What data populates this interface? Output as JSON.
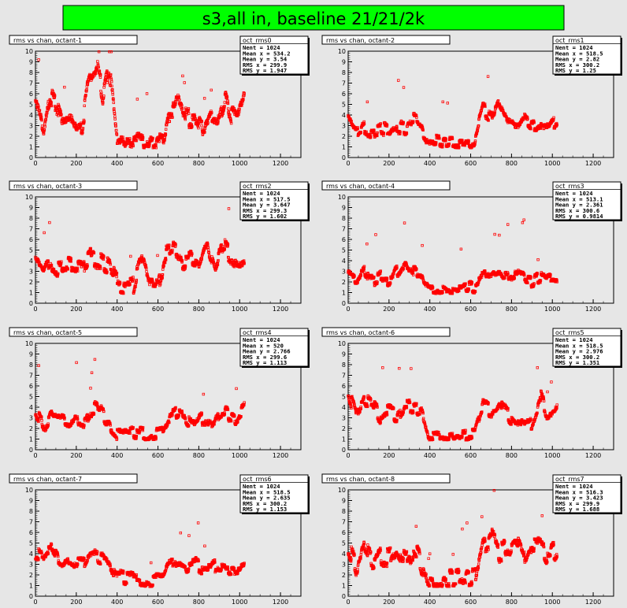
{
  "canvas_title": "s3,all in, baseline 21/21/2k",
  "colors": {
    "title_bg": "#00ff00",
    "marker": "#ff0000",
    "pad_bg": "#e6e6e6",
    "frame_bg": "#e8e8e8"
  },
  "chart_data": [
    {
      "type": "scatter",
      "title": "rms vs chan, octant-1",
      "stats_name": "oct_rms0",
      "stats": [
        {
          "label": "Nent = 1024"
        },
        {
          "label": "Mean x =  534.2"
        },
        {
          "label": "Mean y =  3.54"
        },
        {
          "label": "RMS x =  299.9"
        },
        {
          "label": "RMS y = 1.947"
        }
      ],
      "xlim": [
        0,
        1300
      ],
      "ylim": [
        0,
        10
      ],
      "xticks": [
        "0",
        "200",
        "400",
        "600",
        "800",
        "1000",
        "1200"
      ],
      "yticks": [
        "0",
        "1",
        "2",
        "3",
        "4",
        "5",
        "6",
        "7",
        "8",
        "9",
        "10"
      ],
      "profile": [
        [
          0,
          5.0
        ],
        [
          40,
          2.5
        ],
        [
          70,
          6.0
        ],
        [
          100,
          5.0
        ],
        [
          130,
          3.5
        ],
        [
          170,
          4.0
        ],
        [
          200,
          2.5
        ],
        [
          230,
          3.0
        ],
        [
          260,
          7.0
        ],
        [
          300,
          8.5
        ],
        [
          330,
          6.0
        ],
        [
          360,
          8.5
        ],
        [
          380,
          5.0
        ],
        [
          400,
          1.5
        ],
        [
          480,
          1.4
        ],
        [
          560,
          1.3
        ],
        [
          630,
          1.5
        ],
        [
          660,
          4.5
        ],
        [
          700,
          5.0
        ],
        [
          740,
          3.5
        ],
        [
          780,
          3.8
        ],
        [
          820,
          2.5
        ],
        [
          860,
          4.0
        ],
        [
          900,
          3.5
        ],
        [
          930,
          6.0
        ],
        [
          960,
          4.0
        ],
        [
          990,
          3.5
        ],
        [
          1024,
          6.0
        ]
      ],
      "spread": 0.8,
      "jitter": 0.5
    },
    {
      "type": "scatter",
      "title": "rms vs chan, octant-2",
      "stats_name": "oct_rms1",
      "stats": [
        {
          "label": "Nent = 1024"
        },
        {
          "label": "Mean x =  518.5"
        },
        {
          "label": "Mean y =  2.82"
        },
        {
          "label": "RMS x =  300.2"
        },
        {
          "label": "RMS y =  1.25"
        }
      ],
      "xlim": [
        0,
        1300
      ],
      "ylim": [
        0,
        10
      ],
      "xticks": [
        "0",
        "200",
        "400",
        "600",
        "800",
        "1000",
        "1200"
      ],
      "yticks": [
        "0",
        "1",
        "2",
        "3",
        "4",
        "5",
        "6",
        "7",
        "8",
        "9",
        "10"
      ],
      "profile": [
        [
          0,
          3.5
        ],
        [
          40,
          2.0
        ],
        [
          80,
          2.8
        ],
        [
          120,
          2.5
        ],
        [
          160,
          3.0
        ],
        [
          200,
          2.3
        ],
        [
          240,
          3.0
        ],
        [
          280,
          2.8
        ],
        [
          320,
          3.5
        ],
        [
          360,
          2.8
        ],
        [
          400,
          1.5
        ],
        [
          480,
          1.3
        ],
        [
          560,
          1.4
        ],
        [
          620,
          1.6
        ],
        [
          660,
          4.5
        ],
        [
          700,
          4.0
        ],
        [
          740,
          5.5
        ],
        [
          780,
          3.5
        ],
        [
          820,
          3.0
        ],
        [
          860,
          4.0
        ],
        [
          900,
          3.0
        ],
        [
          940,
          3.5
        ],
        [
          980,
          2.5
        ],
        [
          1024,
          3.5
        ]
      ],
      "spread": 0.6,
      "jitter": 0.3
    },
    {
      "type": "scatter",
      "title": "rms vs chan, octant-3",
      "stats_name": "oct_rms2",
      "stats": [
        {
          "label": "Nent = 1024"
        },
        {
          "label": "Mean x =  517.5"
        },
        {
          "label": "Mean y =  3.647"
        },
        {
          "label": "RMS x =  299.3"
        },
        {
          "label": "RMS y =  1.602"
        }
      ],
      "xlim": [
        0,
        1300
      ],
      "ylim": [
        0,
        10
      ],
      "xticks": [
        "0",
        "200",
        "400",
        "600",
        "800",
        "1000",
        "1200"
      ],
      "yticks": [
        "0",
        "1",
        "2",
        "3",
        "4",
        "5",
        "6",
        "7",
        "8",
        "9",
        "10"
      ],
      "profile": [
        [
          0,
          3.5
        ],
        [
          40,
          2.8
        ],
        [
          80,
          4.0
        ],
        [
          120,
          3.2
        ],
        [
          160,
          3.5
        ],
        [
          200,
          3.0
        ],
        [
          240,
          3.5
        ],
        [
          280,
          4.5
        ],
        [
          320,
          4.0
        ],
        [
          360,
          3.5
        ],
        [
          400,
          2.0
        ],
        [
          440,
          1.5
        ],
        [
          480,
          1.8
        ],
        [
          520,
          4.5
        ],
        [
          560,
          2.0
        ],
        [
          600,
          2.0
        ],
        [
          640,
          4.5
        ],
        [
          680,
          5.0
        ],
        [
          720,
          4.0
        ],
        [
          760,
          4.5
        ],
        [
          800,
          4.0
        ],
        [
          840,
          6.0
        ],
        [
          880,
          3.5
        ],
        [
          920,
          5.5
        ],
        [
          960,
          4.5
        ],
        [
          1000,
          3.5
        ],
        [
          1024,
          4.0
        ]
      ],
      "spread": 0.8,
      "jitter": 0.4
    },
    {
      "type": "scatter",
      "title": "rms vs chan, octant-4",
      "stats_name": "oct_rms3",
      "stats": [
        {
          "label": "Nent = 1024"
        },
        {
          "label": "Mean x =  513.1"
        },
        {
          "label": "Mean y =  2.361"
        },
        {
          "label": "RMS x =  300.6"
        },
        {
          "label": "RMS y =  0.9814"
        }
      ],
      "xlim": [
        0,
        1300
      ],
      "ylim": [
        0,
        10
      ],
      "xticks": [
        "0",
        "200",
        "400",
        "600",
        "800",
        "1000",
        "1200"
      ],
      "yticks": [
        "0",
        "1",
        "2",
        "3",
        "4",
        "5",
        "6",
        "7",
        "8",
        "9",
        "10"
      ],
      "profile": [
        [
          0,
          2.5
        ],
        [
          40,
          2.0
        ],
        [
          80,
          3.0
        ],
        [
          120,
          2.0
        ],
        [
          160,
          2.5
        ],
        [
          200,
          2.2
        ],
        [
          240,
          3.0
        ],
        [
          280,
          4.0
        ],
        [
          320,
          3.0
        ],
        [
          360,
          2.5
        ],
        [
          400,
          1.5
        ],
        [
          480,
          1.3
        ],
        [
          560,
          1.4
        ],
        [
          620,
          1.6
        ],
        [
          660,
          2.5
        ],
        [
          700,
          2.8
        ],
        [
          740,
          3.0
        ],
        [
          780,
          2.5
        ],
        [
          820,
          2.8
        ],
        [
          860,
          2.5
        ],
        [
          900,
          2.0
        ],
        [
          940,
          2.5
        ],
        [
          980,
          2.2
        ],
        [
          1024,
          2.0
        ]
      ],
      "spread": 0.5,
      "jitter": 0.3
    },
    {
      "type": "scatter",
      "title": "rms vs chan, octant-5",
      "stats_name": "oct_rms4",
      "stats": [
        {
          "label": "Nent = 1024"
        },
        {
          "label": "Mean x =    520"
        },
        {
          "label": "Mean y =  2.766"
        },
        {
          "label": "RMS x =  299.6"
        },
        {
          "label": "RMS y =  1.113"
        }
      ],
      "xlim": [
        0,
        1300
      ],
      "ylim": [
        0,
        10
      ],
      "xticks": [
        "0",
        "200",
        "400",
        "600",
        "800",
        "1000",
        "1200"
      ],
      "yticks": [
        "0",
        "1",
        "2",
        "3",
        "4",
        "5",
        "6",
        "7",
        "8",
        "9",
        "10"
      ],
      "profile": [
        [
          0,
          3.8
        ],
        [
          40,
          2.0
        ],
        [
          80,
          3.5
        ],
        [
          120,
          3.0
        ],
        [
          160,
          2.5
        ],
        [
          200,
          3.0
        ],
        [
          240,
          2.5
        ],
        [
          280,
          4.0
        ],
        [
          320,
          3.5
        ],
        [
          360,
          2.5
        ],
        [
          400,
          1.5
        ],
        [
          480,
          1.5
        ],
        [
          560,
          1.3
        ],
        [
          620,
          1.6
        ],
        [
          660,
          3.0
        ],
        [
          700,
          3.5
        ],
        [
          740,
          3.0
        ],
        [
          780,
          2.0
        ],
        [
          820,
          3.0
        ],
        [
          860,
          2.5
        ],
        [
          900,
          3.5
        ],
        [
          940,
          3.5
        ],
        [
          980,
          3.0
        ],
        [
          1024,
          4.0
        ]
      ],
      "spread": 0.6,
      "jitter": 0.3
    },
    {
      "type": "scatter",
      "title": "rms vs chan, octant-6",
      "stats_name": "oct_rms5",
      "stats": [
        {
          "label": "Nent = 1024"
        },
        {
          "label": "Mean x =  518.5"
        },
        {
          "label": "Mean y =  2.976"
        },
        {
          "label": "RMS x =  300.2"
        },
        {
          "label": "RMS y =  1.351"
        }
      ],
      "xlim": [
        0,
        1300
      ],
      "ylim": [
        0,
        10
      ],
      "xticks": [
        "0",
        "200",
        "400",
        "600",
        "800",
        "1000",
        "1200"
      ],
      "yticks": [
        "0",
        "1",
        "2",
        "3",
        "4",
        "5",
        "6",
        "7",
        "8",
        "9",
        "10"
      ],
      "profile": [
        [
          0,
          5.5
        ],
        [
          40,
          3.0
        ],
        [
          80,
          4.5
        ],
        [
          120,
          4.0
        ],
        [
          160,
          3.0
        ],
        [
          200,
          3.5
        ],
        [
          240,
          3.0
        ],
        [
          280,
          4.0
        ],
        [
          320,
          3.8
        ],
        [
          360,
          4.0
        ],
        [
          400,
          1.4
        ],
        [
          480,
          1.3
        ],
        [
          560,
          1.3
        ],
        [
          620,
          1.5
        ],
        [
          660,
          4.0
        ],
        [
          700,
          3.5
        ],
        [
          740,
          4.5
        ],
        [
          780,
          3.5
        ],
        [
          820,
          2.5
        ],
        [
          860,
          2.0
        ],
        [
          900,
          2.5
        ],
        [
          940,
          5.0
        ],
        [
          980,
          3.0
        ],
        [
          1024,
          4.5
        ]
      ],
      "spread": 0.7,
      "jitter": 0.3
    },
    {
      "type": "scatter",
      "title": "rms vs chan, octant-7",
      "stats_name": "oct_rms6",
      "stats": [
        {
          "label": "Nent = 1024"
        },
        {
          "label": "Mean x =  518.5"
        },
        {
          "label": "Mean y =  2.635"
        },
        {
          "label": "RMS x =  300.2"
        },
        {
          "label": "RMS y =  1.153"
        }
      ],
      "xlim": [
        0,
        1300
      ],
      "ylim": [
        0,
        10
      ],
      "xticks": [
        "0",
        "200",
        "400",
        "600",
        "800",
        "1000",
        "1200"
      ],
      "yticks": [
        "0",
        "1",
        "2",
        "3",
        "4",
        "5",
        "6",
        "7",
        "8",
        "9",
        "10"
      ],
      "profile": [
        [
          0,
          4.0
        ],
        [
          40,
          3.5
        ],
        [
          80,
          4.5
        ],
        [
          120,
          3.0
        ],
        [
          160,
          3.5
        ],
        [
          200,
          3.0
        ],
        [
          240,
          3.0
        ],
        [
          280,
          4.0
        ],
        [
          320,
          3.5
        ],
        [
          360,
          3.0
        ],
        [
          400,
          1.8
        ],
        [
          480,
          1.5
        ],
        [
          560,
          1.3
        ],
        [
          620,
          1.5
        ],
        [
          660,
          3.0
        ],
        [
          700,
          3.5
        ],
        [
          740,
          2.8
        ],
        [
          780,
          3.2
        ],
        [
          820,
          2.5
        ],
        [
          860,
          2.5
        ],
        [
          900,
          3.0
        ],
        [
          940,
          2.8
        ],
        [
          980,
          2.5
        ],
        [
          1024,
          3.0
        ]
      ],
      "spread": 0.6,
      "jitter": 0.3
    },
    {
      "type": "scatter",
      "title": "rms vs chan, octant-8",
      "stats_name": "oct_rms7",
      "stats": [
        {
          "label": "Nent = 1024"
        },
        {
          "label": "Mean x =  516.3"
        },
        {
          "label": "Mean y =  3.423"
        },
        {
          "label": "RMS x =  299.9"
        },
        {
          "label": "RMS y =  1.688"
        }
      ],
      "xlim": [
        0,
        1300
      ],
      "ylim": [
        0,
        10
      ],
      "xticks": [
        "0",
        "200",
        "400",
        "600",
        "800",
        "1000",
        "1200"
      ],
      "yticks": [
        "0",
        "1",
        "2",
        "3",
        "4",
        "5",
        "6",
        "7",
        "8",
        "9",
        "10"
      ],
      "profile": [
        [
          0,
          4.5
        ],
        [
          40,
          2.5
        ],
        [
          80,
          4.5
        ],
        [
          120,
          3.0
        ],
        [
          160,
          4.0
        ],
        [
          200,
          3.5
        ],
        [
          240,
          4.5
        ],
        [
          280,
          3.5
        ],
        [
          320,
          4.5
        ],
        [
          360,
          3.0
        ],
        [
          400,
          1.5
        ],
        [
          480,
          1.4
        ],
        [
          560,
          1.5
        ],
        [
          620,
          1.6
        ],
        [
          660,
          5.0
        ],
        [
          700,
          5.5
        ],
        [
          740,
          4.0
        ],
        [
          780,
          4.5
        ],
        [
          820,
          5.0
        ],
        [
          860,
          3.5
        ],
        [
          900,
          5.0
        ],
        [
          940,
          4.5
        ],
        [
          980,
          3.5
        ],
        [
          1024,
          4.5
        ]
      ],
      "spread": 0.9,
      "jitter": 0.4
    }
  ]
}
